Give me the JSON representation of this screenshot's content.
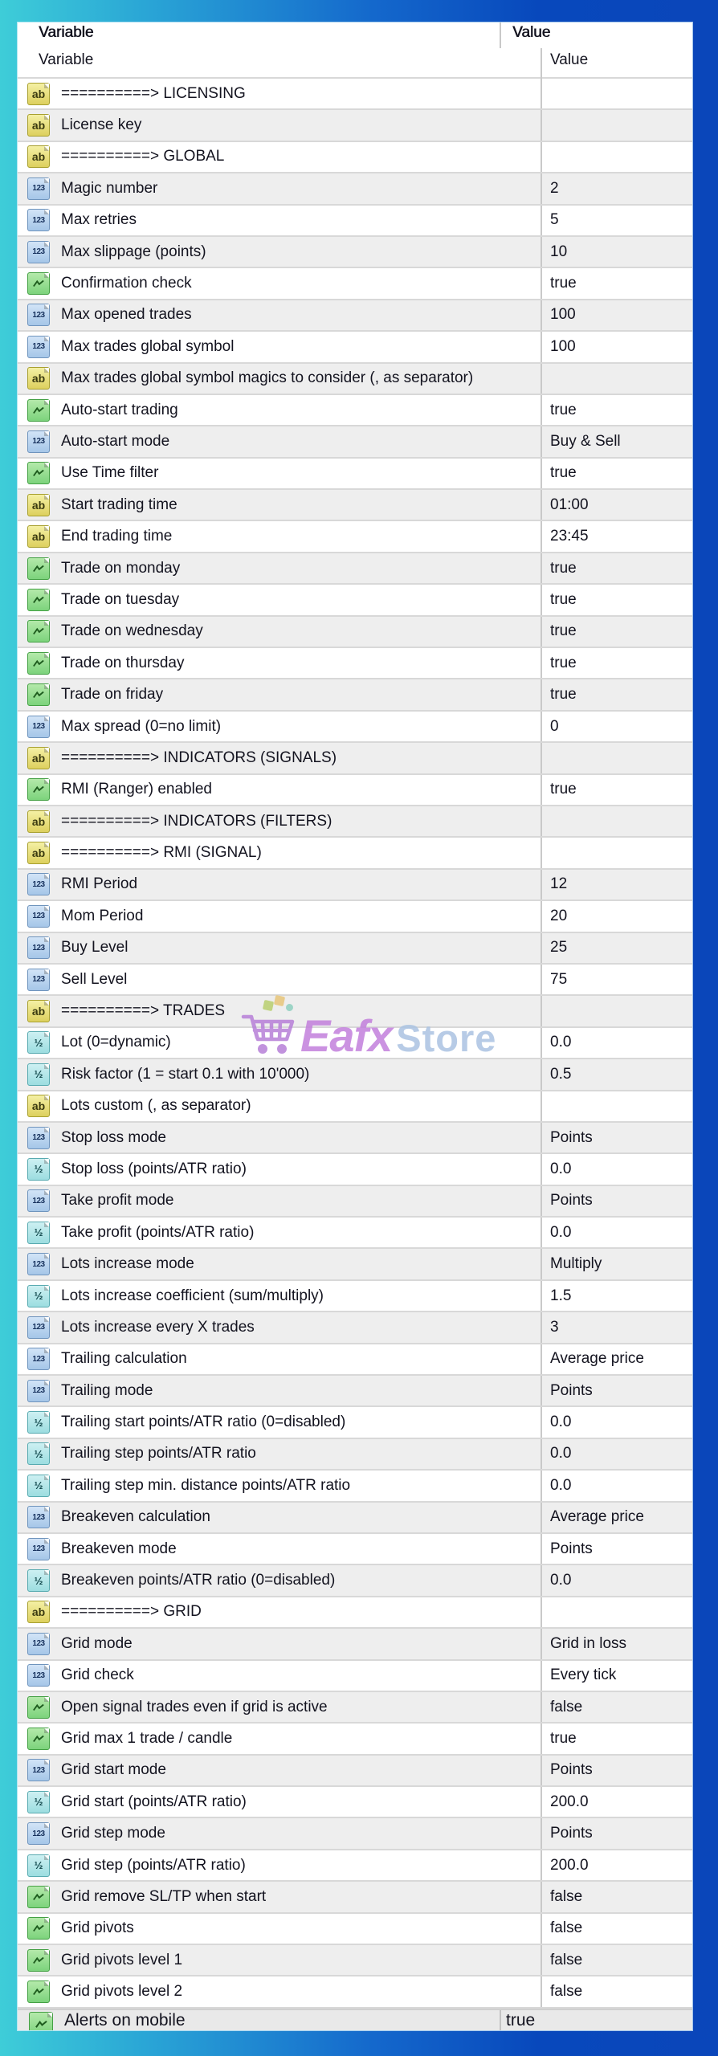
{
  "header": {
    "variable_col": "Variable",
    "value_col": "Value"
  },
  "ghost_header": {
    "variable_col": "Variable",
    "value_col": "Value"
  },
  "ghost_bottom_row": {
    "type": "boolean",
    "label": "Alerts on mobile",
    "value": "true"
  },
  "watermark": {
    "brand_primary": "Eafx",
    "brand_secondary": "Store",
    "cart_color": "#b77fd8",
    "primary_color": "#c27fdc",
    "secondary_color": "#abc3e2"
  },
  "colors": {
    "row_alt": "#eeeeee",
    "row_white": "#ffffff",
    "divider": "#c9c9c9",
    "text": "#13131f",
    "bg_left": "#3ecdd8",
    "bg_right": "#0a46ba",
    "icon_string": "#ddd05e",
    "icon_integer": "#a5c6e8",
    "icon_double": "#9cdde0",
    "icon_boolean": "#7cd37c"
  },
  "icons": {
    "string": "ab",
    "integer": "123",
    "double": "½",
    "boolean": "chart-line"
  },
  "rows": [
    {
      "type": "string",
      "label": "==========> LICENSING",
      "value": ""
    },
    {
      "type": "string",
      "label": "License key",
      "value": ""
    },
    {
      "type": "string",
      "label": "==========> GLOBAL",
      "value": ""
    },
    {
      "type": "integer",
      "label": "Magic number",
      "value": "2"
    },
    {
      "type": "integer",
      "label": "Max retries",
      "value": "5"
    },
    {
      "type": "integer",
      "label": "Max slippage (points)",
      "value": "10"
    },
    {
      "type": "boolean",
      "label": "Confirmation check",
      "value": "true"
    },
    {
      "type": "integer",
      "label": "Max opened trades",
      "value": "100"
    },
    {
      "type": "integer",
      "label": "Max trades global symbol",
      "value": "100"
    },
    {
      "type": "string",
      "label": "Max trades global symbol magics to consider (, as separator)",
      "value": ""
    },
    {
      "type": "boolean",
      "label": "Auto-start trading",
      "value": "true"
    },
    {
      "type": "integer",
      "label": "Auto-start mode",
      "value": "Buy & Sell"
    },
    {
      "type": "boolean",
      "label": "Use Time filter",
      "value": "true"
    },
    {
      "type": "string",
      "label": "Start trading time",
      "value": "01:00"
    },
    {
      "type": "string",
      "label": "End trading time",
      "value": "23:45"
    },
    {
      "type": "boolean",
      "label": "Trade on monday",
      "value": "true"
    },
    {
      "type": "boolean",
      "label": "Trade on tuesday",
      "value": "true"
    },
    {
      "type": "boolean",
      "label": "Trade on wednesday",
      "value": "true"
    },
    {
      "type": "boolean",
      "label": "Trade on thursday",
      "value": "true"
    },
    {
      "type": "boolean",
      "label": "Trade on friday",
      "value": "true"
    },
    {
      "type": "integer",
      "label": "Max spread (0=no limit)",
      "value": "0"
    },
    {
      "type": "string",
      "label": "==========> INDICATORS (SIGNALS)",
      "value": ""
    },
    {
      "type": "boolean",
      "label": "RMI (Ranger) enabled",
      "value": "true"
    },
    {
      "type": "string",
      "label": "==========> INDICATORS (FILTERS)",
      "value": ""
    },
    {
      "type": "string",
      "label": "==========> RMI (SIGNAL)",
      "value": ""
    },
    {
      "type": "integer",
      "label": "RMI Period",
      "value": "12"
    },
    {
      "type": "integer",
      "label": "Mom Period",
      "value": "20"
    },
    {
      "type": "integer",
      "label": "Buy Level",
      "value": "25"
    },
    {
      "type": "integer",
      "label": "Sell Level",
      "value": "75"
    },
    {
      "type": "string",
      "label": "==========> TRADES",
      "value": ""
    },
    {
      "type": "double",
      "label": "Lot (0=dynamic)",
      "value": "0.0"
    },
    {
      "type": "double",
      "label": "Risk factor (1 = start 0.1 with 10'000)",
      "value": "0.5"
    },
    {
      "type": "string",
      "label": "Lots custom (, as separator)",
      "value": ""
    },
    {
      "type": "integer",
      "label": "Stop loss mode",
      "value": "Points"
    },
    {
      "type": "double",
      "label": "Stop loss (points/ATR ratio)",
      "value": "0.0"
    },
    {
      "type": "integer",
      "label": "Take profit mode",
      "value": "Points"
    },
    {
      "type": "double",
      "label": "Take profit (points/ATR ratio)",
      "value": "0.0"
    },
    {
      "type": "integer",
      "label": "Lots increase mode",
      "value": "Multiply"
    },
    {
      "type": "double",
      "label": "Lots increase coefficient (sum/multiply)",
      "value": "1.5"
    },
    {
      "type": "integer",
      "label": "Lots increase every X trades",
      "value": "3"
    },
    {
      "type": "integer",
      "label": "Trailing calculation",
      "value": "Average price"
    },
    {
      "type": "integer",
      "label": "Trailing mode",
      "value": "Points"
    },
    {
      "type": "double",
      "label": "Trailing start points/ATR ratio (0=disabled)",
      "value": "0.0"
    },
    {
      "type": "double",
      "label": "Trailing step points/ATR ratio",
      "value": "0.0"
    },
    {
      "type": "double",
      "label": "Trailing step min. distance points/ATR ratio",
      "value": "0.0"
    },
    {
      "type": "integer",
      "label": "Breakeven calculation",
      "value": "Average price"
    },
    {
      "type": "integer",
      "label": "Breakeven mode",
      "value": "Points"
    },
    {
      "type": "double",
      "label": "Breakeven points/ATR ratio (0=disabled)",
      "value": "0.0"
    },
    {
      "type": "string",
      "label": "==========> GRID",
      "value": ""
    },
    {
      "type": "integer",
      "label": "Grid mode",
      "value": "Grid in loss"
    },
    {
      "type": "integer",
      "label": "Grid check",
      "value": "Every tick"
    },
    {
      "type": "boolean",
      "label": "Open signal trades even if grid is active",
      "value": "false"
    },
    {
      "type": "boolean",
      "label": "Grid max 1 trade / candle",
      "value": "true"
    },
    {
      "type": "integer",
      "label": "Grid start mode",
      "value": "Points"
    },
    {
      "type": "double",
      "label": "Grid start (points/ATR ratio)",
      "value": "200.0"
    },
    {
      "type": "integer",
      "label": "Grid step mode",
      "value": "Points"
    },
    {
      "type": "double",
      "label": "Grid step (points/ATR ratio)",
      "value": "200.0"
    },
    {
      "type": "boolean",
      "label": "Grid remove SL/TP when start",
      "value": "false"
    },
    {
      "type": "boolean",
      "label": "Grid pivots",
      "value": "false"
    },
    {
      "type": "boolean",
      "label": "Grid pivots level 1",
      "value": "false"
    },
    {
      "type": "boolean",
      "label": "Grid pivots level 2",
      "value": "false"
    }
  ]
}
